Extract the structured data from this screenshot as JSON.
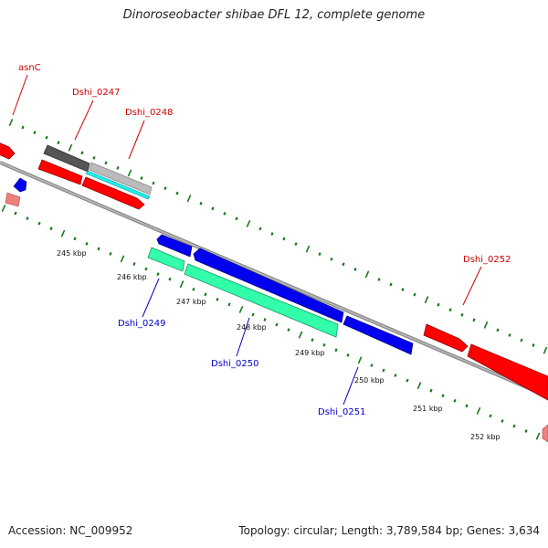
{
  "title": "Dinoroseobacter shibae DFL 12, complete genome",
  "footer": {
    "accession": "Accession: NC_009952",
    "summary": "Topology: circular; Length: 3,789,584 bp; Genes: 3,634"
  },
  "colors": {
    "forward_gene": "#ff0000",
    "forward_gene_faded": "#f08080",
    "reverse_gene": "#0000ee",
    "rna_gene": "#33ffaa",
    "cyan_gene": "#22eeee",
    "pseudo_dark": "#555555",
    "pseudo_light": "#bbbbbb",
    "backbone": "#888888",
    "ticks": "#1a7a1a",
    "label_forward": "#cc0000",
    "label_reverse": "#0000cc"
  },
  "kbp_ticks": [
    "245 kbp",
    "246 kbp",
    "247 kbp",
    "248 kbp",
    "249 kbp",
    "250 kbp",
    "251 kbp",
    "252 kbp"
  ],
  "gene_labels": {
    "asnC": "asnC",
    "d0247": "Dshi_0247",
    "d0248": "Dshi_0248",
    "d0249": "Dshi_0249",
    "d0250": "Dshi_0250",
    "d0251": "Dshi_0251",
    "d0252": "Dshi_0252"
  }
}
